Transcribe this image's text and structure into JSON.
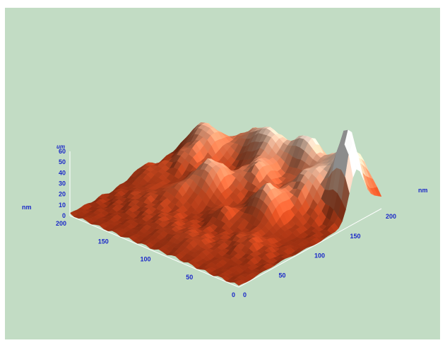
{
  "chart_data": {
    "type": "surface3d",
    "title": "",
    "x_axis": {
      "label": "nm",
      "ticks": [
        0,
        50,
        100,
        150,
        200
      ],
      "range": [
        0,
        200
      ]
    },
    "y_axis": {
      "label": "nm",
      "ticks": [
        0,
        50,
        100,
        150,
        200
      ],
      "range": [
        0,
        200
      ]
    },
    "z_axis": {
      "unit": "um",
      "ticks": [
        0,
        10,
        20,
        30,
        40,
        50,
        60
      ],
      "range": [
        0,
        60
      ]
    },
    "colormap": [
      "#6a1606",
      "#9e3011",
      "#c4471f",
      "#df7a52",
      "#f4c6aa",
      "#ffffff"
    ],
    "background_color": "#c2dcc4",
    "label_color": "#1a28c8",
    "peaks": [
      {
        "x": 10,
        "y": 165,
        "height": 70,
        "width": 10
      },
      {
        "x": 30,
        "y": 190,
        "height": 48,
        "width": 18
      },
      {
        "x": 45,
        "y": 150,
        "height": 34,
        "width": 16
      },
      {
        "x": 60,
        "y": 110,
        "height": 32,
        "width": 14
      },
      {
        "x": 75,
        "y": 185,
        "height": 42,
        "width": 14
      },
      {
        "x": 85,
        "y": 80,
        "height": 14,
        "width": 10
      },
      {
        "x": 95,
        "y": 140,
        "height": 28,
        "width": 14
      },
      {
        "x": 110,
        "y": 175,
        "height": 36,
        "width": 16
      },
      {
        "x": 125,
        "y": 110,
        "height": 34,
        "width": 16
      },
      {
        "x": 140,
        "y": 185,
        "height": 26,
        "width": 18
      },
      {
        "x": 160,
        "y": 150,
        "height": 20,
        "width": 14
      },
      {
        "x": 170,
        "y": 125,
        "height": 18,
        "width": 12
      },
      {
        "x": 180,
        "y": 160,
        "height": 26,
        "width": 14
      },
      {
        "x": 160,
        "y": 60,
        "height": 8,
        "width": 18
      },
      {
        "x": 190,
        "y": 100,
        "height": 10,
        "width": 14
      },
      {
        "x": 140,
        "y": 80,
        "height": 12,
        "width": 12
      },
      {
        "x": 120,
        "y": 40,
        "height": 6,
        "width": 16
      },
      {
        "x": 80,
        "y": 30,
        "height": 8,
        "width": 16
      },
      {
        "x": 40,
        "y": 60,
        "height": 10,
        "width": 14
      }
    ]
  }
}
